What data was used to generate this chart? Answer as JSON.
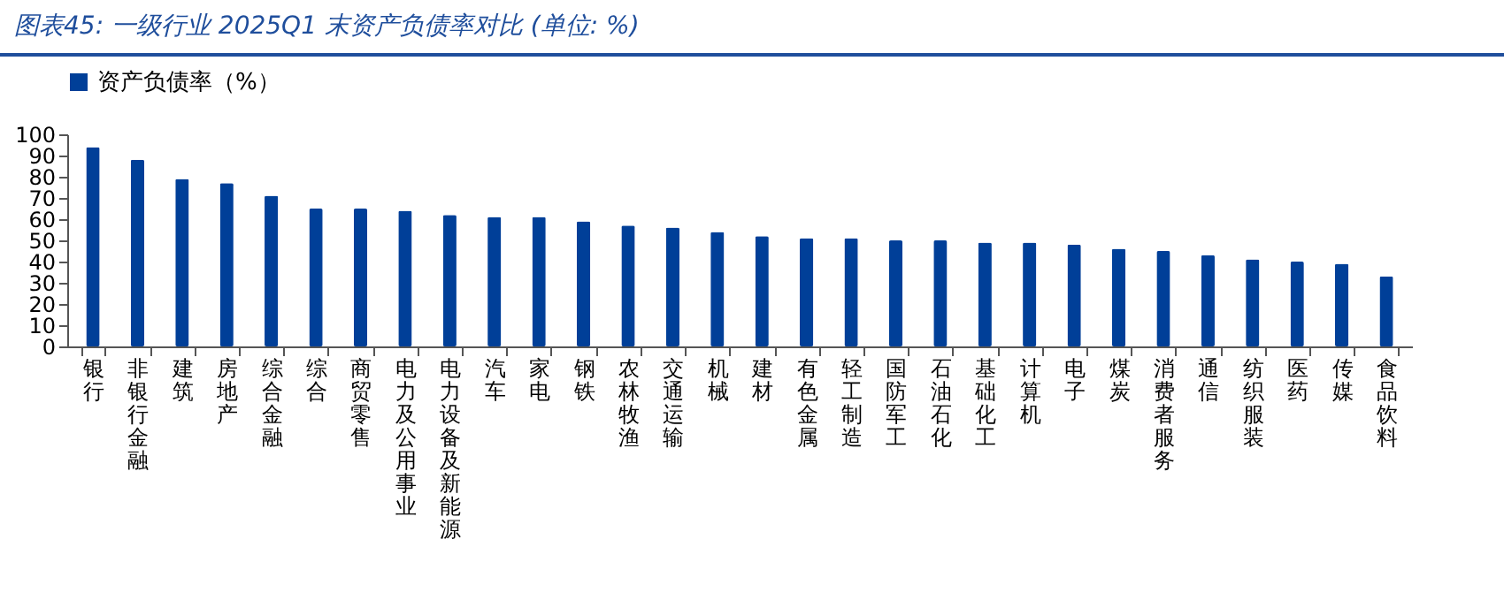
{
  "chart_data": {
    "type": "bar",
    "title": "图表45:  一级行业 2025Q1 末资产负债率对比 (单位:   %)",
    "categories": [
      "银行",
      "非银行金融",
      "建筑",
      "房地产",
      "综合金融",
      "综合",
      "商贸零售",
      "电力及公用事业",
      "电力设备及新能源",
      "汽车",
      "家电",
      "钢铁",
      "农林牧渔",
      "交通运输",
      "机械",
      "建材",
      "有色金属",
      "轻工制造",
      "国防军工",
      "石油石化",
      "基础化工",
      "计算机",
      "电子",
      "煤炭",
      "消费者服务",
      "通信",
      "纺织服装",
      "医药",
      "传媒",
      "食品饮料"
    ],
    "series": [
      {
        "name": "资产负债率（%）",
        "color": "#003f98",
        "values": [
          94,
          88,
          79,
          77,
          71,
          65,
          65,
          64,
          62,
          61,
          61,
          59,
          57,
          56,
          54,
          52,
          51,
          51,
          50,
          50,
          49,
          49,
          48,
          46,
          45,
          43,
          41,
          40,
          39,
          33
        ]
      }
    ],
    "ylim": [
      0,
      100
    ],
    "yticks": [
      0,
      10,
      20,
      30,
      40,
      50,
      60,
      70,
      80,
      90,
      100
    ],
    "legend": "top"
  }
}
